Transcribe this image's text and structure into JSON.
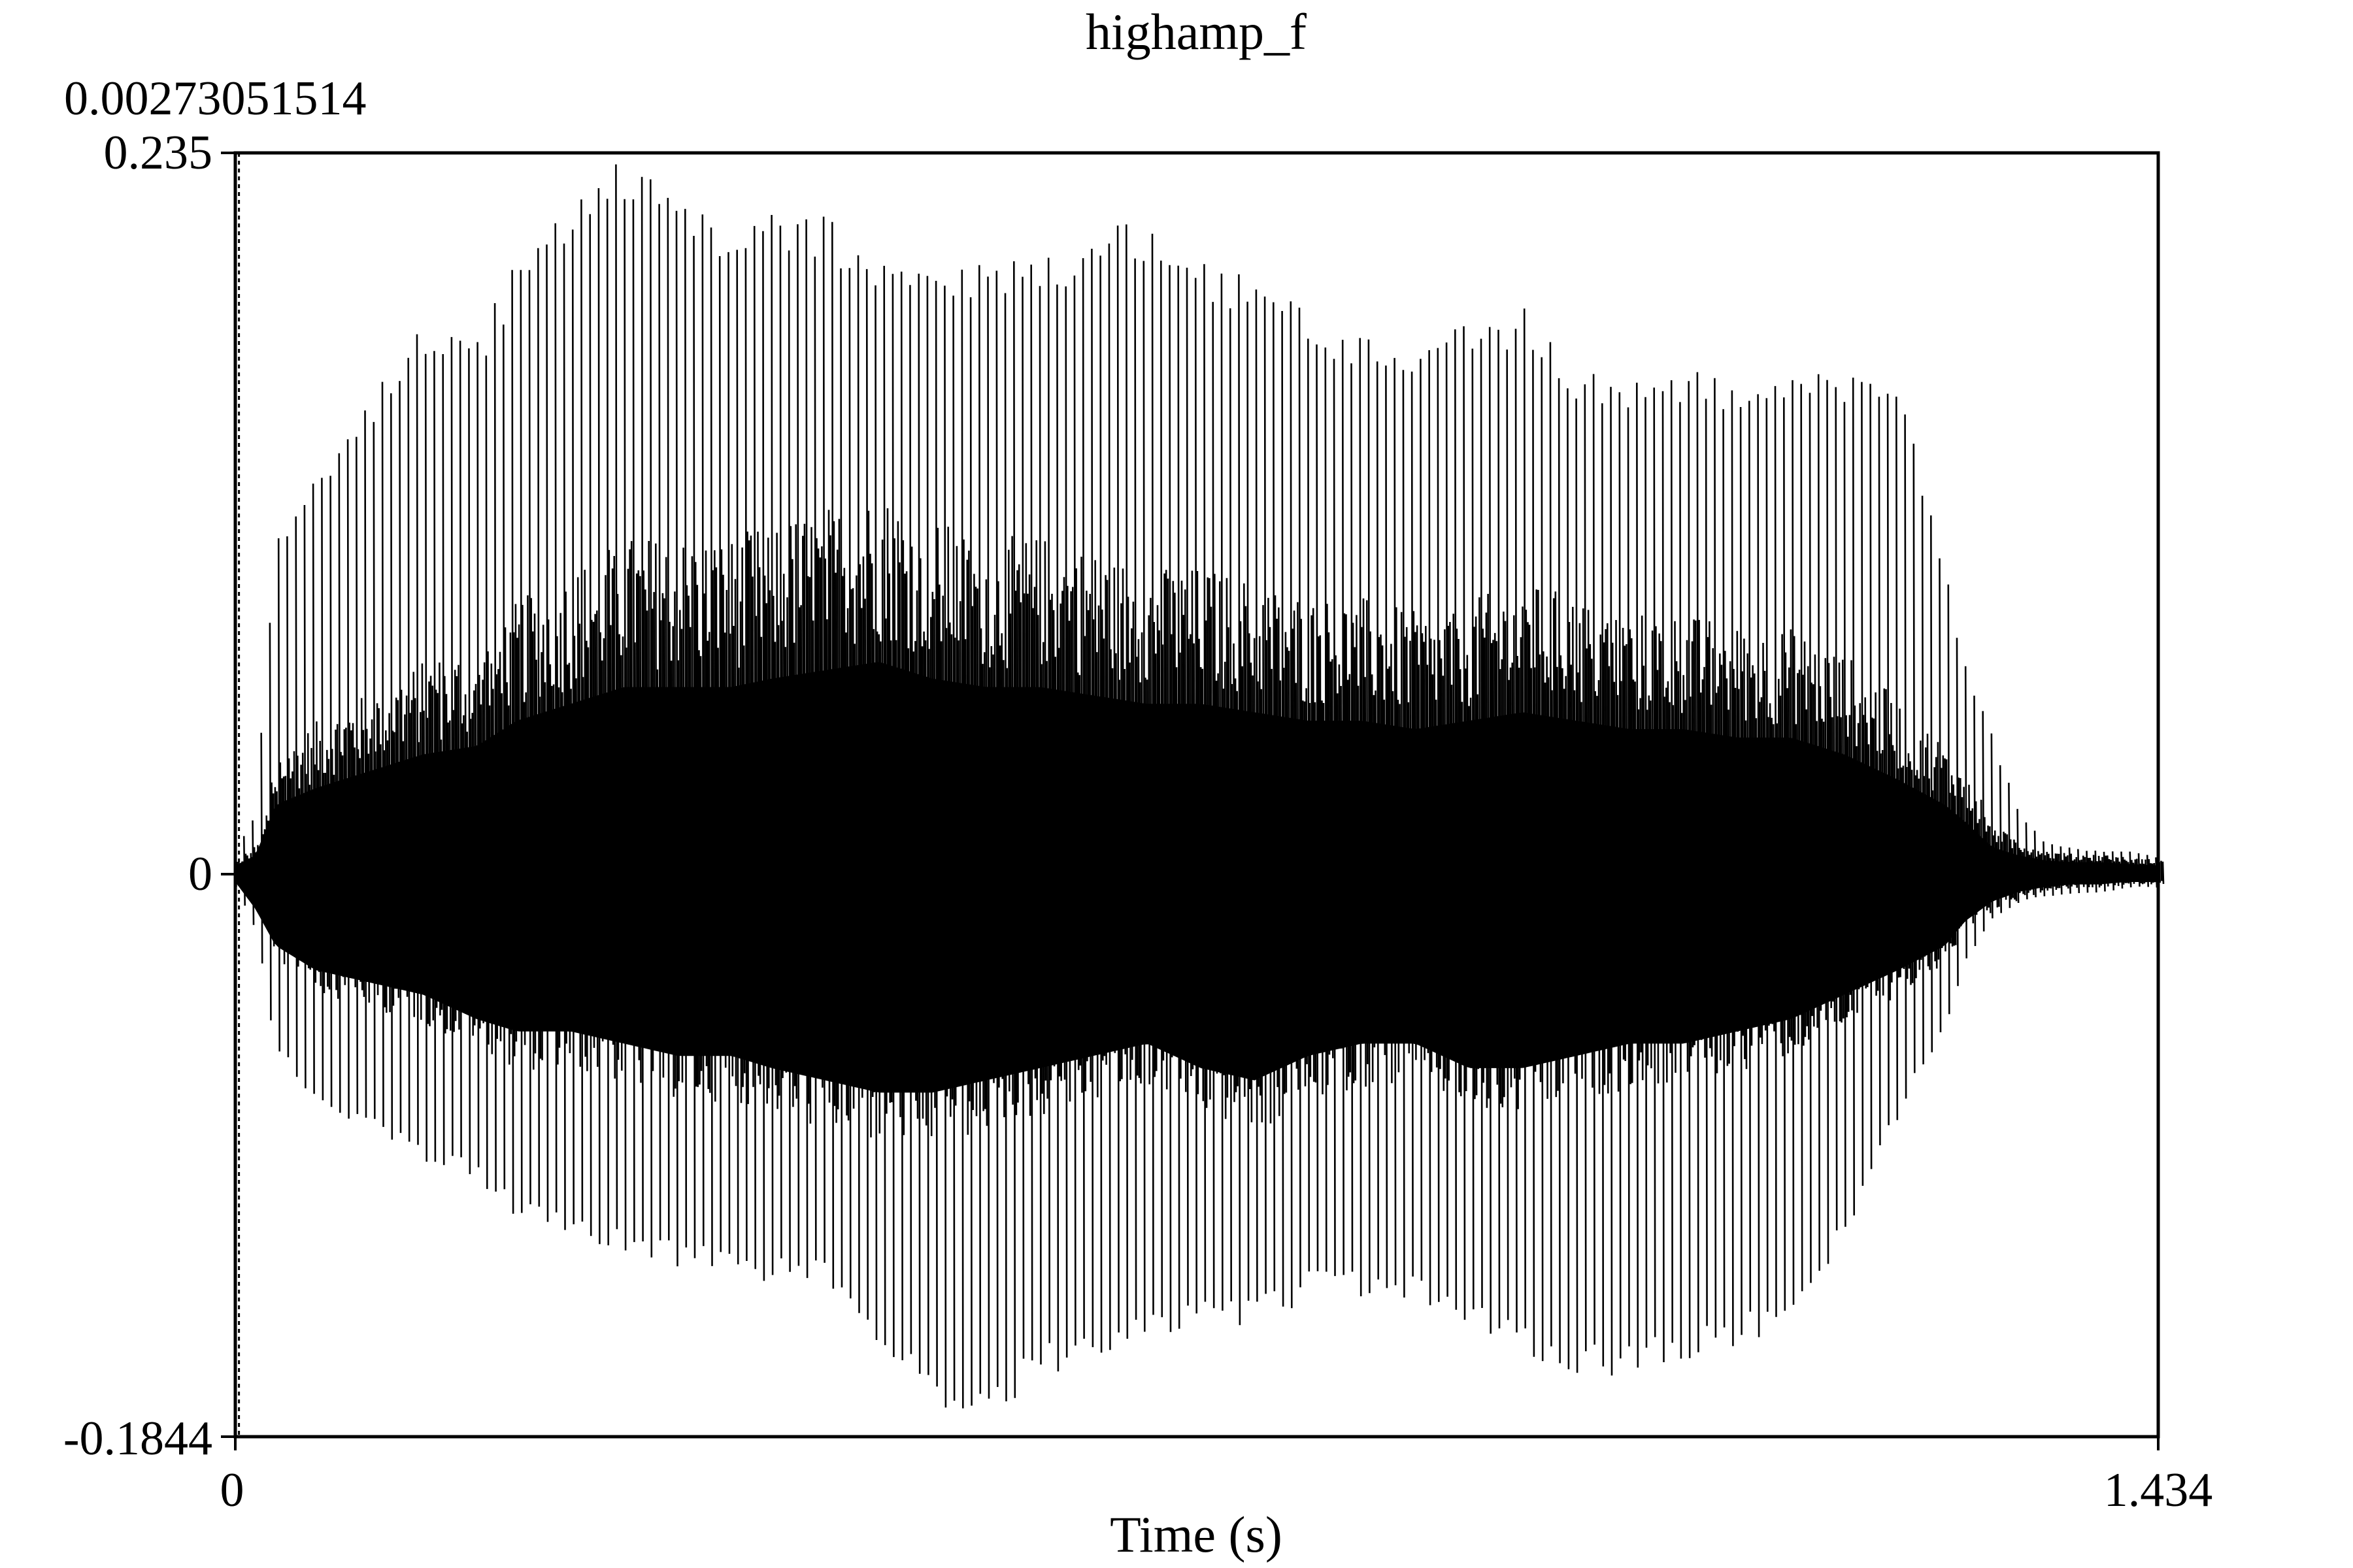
{
  "chart_data": {
    "type": "line",
    "title": "highamp_f",
    "xlabel": "Time (s)",
    "ylabel": "",
    "xlim": [
      0,
      1.434
    ],
    "ylim": [
      -0.1844,
      0.235
    ],
    "x_ticks": [
      "0",
      "1.434"
    ],
    "y_ticks": [
      "0.235",
      "0",
      "-0.1844"
    ],
    "cursor": {
      "x": 0.00273051514,
      "label": "0.00273051514"
    },
    "series": [
      {
        "envelope_time": [
          0,
          0.015,
          0.03,
          0.06,
          0.1,
          0.14,
          0.18,
          0.21,
          0.25,
          0.29,
          0.33,
          0.37,
          0.4,
          0.44,
          0.48,
          0.52,
          0.56,
          0.6,
          0.64,
          0.68,
          0.72,
          0.76,
          0.8,
          0.84,
          0.88,
          0.92,
          0.96,
          1.0,
          1.04,
          1.08,
          1.12,
          1.16,
          1.2,
          1.24,
          1.275,
          1.29,
          1.31,
          1.33,
          1.35,
          1.37,
          1.39,
          1.41,
          1.434
        ],
        "envelope_max": [
          0.006,
          0.02,
          0.11,
          0.13,
          0.155,
          0.18,
          0.175,
          0.2,
          0.22,
          0.234,
          0.225,
          0.21,
          0.215,
          0.215,
          0.205,
          0.195,
          0.2,
          0.2,
          0.21,
          0.215,
          0.2,
          0.195,
          0.185,
          0.175,
          0.17,
          0.18,
          0.185,
          0.165,
          0.16,
          0.165,
          0.16,
          0.165,
          0.165,
          0.16,
          0.1,
          0.07,
          0.045,
          0.02,
          0.01,
          0.008,
          0.007,
          0.007,
          0.005
        ],
        "envelope_min": [
          -0.005,
          -0.02,
          -0.06,
          -0.075,
          -0.085,
          -0.095,
          -0.1,
          -0.115,
          -0.12,
          -0.125,
          -0.13,
          -0.13,
          -0.135,
          -0.135,
          -0.155,
          -0.175,
          -0.18,
          -0.165,
          -0.16,
          -0.155,
          -0.15,
          -0.15,
          -0.14,
          -0.14,
          -0.14,
          -0.15,
          -0.16,
          -0.165,
          -0.165,
          -0.16,
          -0.155,
          -0.15,
          -0.12,
          -0.08,
          -0.05,
          -0.03,
          -0.015,
          -0.01,
          -0.008,
          -0.007,
          -0.007,
          -0.005,
          -0.005
        ],
        "inner_max": [
          0.004,
          0.01,
          0.04,
          0.05,
          0.06,
          0.07,
          0.075,
          0.09,
          0.1,
          0.11,
          0.11,
          0.11,
          0.115,
          0.12,
          0.125,
          0.115,
          0.11,
          0.11,
          0.105,
          0.1,
          0.1,
          0.095,
          0.09,
          0.09,
          0.085,
          0.09,
          0.095,
          0.09,
          0.085,
          0.085,
          0.08,
          0.08,
          0.07,
          0.055,
          0.04,
          0.03,
          0.015,
          0.01,
          0.007,
          0.006,
          0.006,
          0.005,
          0.004
        ],
        "inner_min": [
          -0.004,
          -0.015,
          -0.03,
          -0.04,
          -0.045,
          -0.05,
          -0.06,
          -0.065,
          -0.065,
          -0.07,
          -0.075,
          -0.075,
          -0.08,
          -0.085,
          -0.09,
          -0.09,
          -0.085,
          -0.08,
          -0.075,
          -0.07,
          -0.08,
          -0.085,
          -0.075,
          -0.07,
          -0.07,
          -0.08,
          -0.08,
          -0.075,
          -0.07,
          -0.07,
          -0.065,
          -0.06,
          -0.05,
          -0.04,
          -0.03,
          -0.02,
          -0.012,
          -0.008,
          -0.006,
          -0.005,
          -0.005,
          -0.004,
          -0.004
        ],
        "f0_hz": 155
      }
    ]
  }
}
